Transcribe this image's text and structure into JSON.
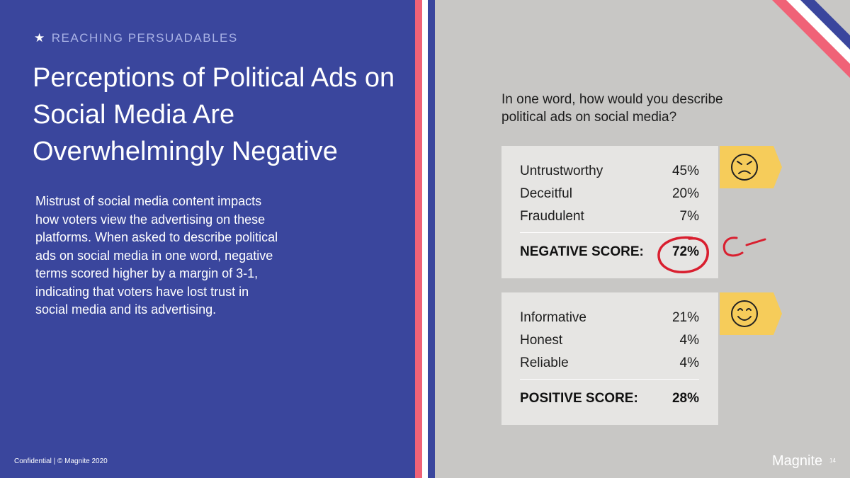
{
  "section": {
    "eyebrow": "REACHING PERSUADABLES",
    "title": "Perceptions of Political Ads on Social Media Are Overwhelmingly Negative",
    "body": "Mistrust of social media content impacts how voters view the advertising on these platforms. When asked to describe political ads on social media in one word, negative terms scored higher by a margin of 3-1, indicating that voters have lost trust in social media and its advertising."
  },
  "survey": {
    "question": "In one word, how would you describe political ads on social media?",
    "negative": {
      "items": [
        {
          "label": "Untrustworthy",
          "value": "45%"
        },
        {
          "label": "Deceitful",
          "value": "20%"
        },
        {
          "label": "Fraudulent",
          "value": "7%"
        }
      ],
      "score_label": "NEGATIVE SCORE:",
      "score_value": "72%"
    },
    "positive": {
      "items": [
        {
          "label": "Informative",
          "value": "21%"
        },
        {
          "label": "Honest",
          "value": "4%"
        },
        {
          "label": "Reliable",
          "value": "4%"
        }
      ],
      "score_label": "POSITIVE SCORE:",
      "score_value": "28%"
    }
  },
  "footer": {
    "confidential": "Confidential | © Magnite 2020",
    "brand": "Magnite",
    "page": "14"
  },
  "icons": [
    "star-icon",
    "angry-face-icon",
    "smile-face-icon"
  ],
  "colors": {
    "navy": "#3a469d",
    "pink": "#f06277",
    "panel_gray": "#c8c7c5",
    "card_gray": "#e6e5e3",
    "flag_yellow": "#f6cc5a",
    "annotation_red": "#d91f2f"
  }
}
